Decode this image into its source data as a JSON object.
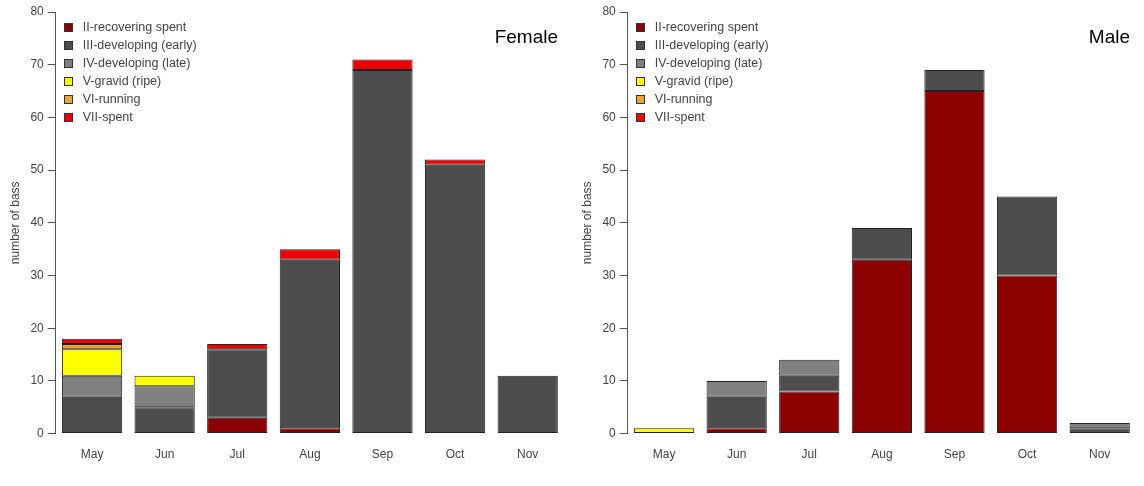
{
  "chart_data": [
    {
      "type": "bar",
      "title": "Female",
      "ylabel": "number of bass",
      "stacked": true,
      "legend": "top left",
      "grid": false,
      "categories": [
        "May",
        "Jun",
        "Jul",
        "Aug",
        "Sep",
        "Oct",
        "Nov"
      ],
      "ylim": [
        0,
        80
      ],
      "yticks": [
        0,
        10,
        20,
        30,
        40,
        50,
        60,
        70,
        80
      ],
      "series": [
        {
          "name": "II-recovering spent",
          "color": "#8b0000",
          "values": [
            0,
            0,
            3,
            1,
            0,
            0,
            0
          ]
        },
        {
          "name": "III-developing (early)",
          "color": "#4d4d4d",
          "values": [
            7,
            5,
            13,
            32,
            69,
            51,
            11
          ]
        },
        {
          "name": "IV-developing (late)",
          "color": "#808080",
          "values": [
            4,
            4,
            0,
            0,
            0,
            0,
            0
          ]
        },
        {
          "name": "V-gravid (ripe)",
          "color": "#ffff00",
          "values": [
            5,
            2,
            0,
            0,
            0,
            0,
            0
          ]
        },
        {
          "name": "VI-running",
          "color": "#e8a33a",
          "values": [
            1,
            0,
            0,
            0,
            0,
            0,
            0
          ]
        },
        {
          "name": "VII-spent",
          "color": "#ee0000",
          "values": [
            1,
            0,
            1,
            2,
            2,
            1,
            0
          ]
        }
      ]
    },
    {
      "type": "bar",
      "title": "Male",
      "ylabel": "number of bass",
      "stacked": true,
      "legend": "top left",
      "grid": false,
      "categories": [
        "May",
        "Jun",
        "Jul",
        "Aug",
        "Sep",
        "Oct",
        "Nov"
      ],
      "ylim": [
        0,
        80
      ],
      "yticks": [
        0,
        10,
        20,
        30,
        40,
        50,
        60,
        70,
        80
      ],
      "series": [
        {
          "name": "II-recovering spent",
          "color": "#8b0000",
          "values": [
            0,
            1,
            8,
            33,
            65,
            30,
            0
          ]
        },
        {
          "name": "III-developing (early)",
          "color": "#4d4d4d",
          "values": [
            0,
            6,
            3,
            6,
            4,
            15,
            1
          ]
        },
        {
          "name": "IV-developing (late)",
          "color": "#808080",
          "values": [
            0,
            3,
            3,
            0,
            0,
            0,
            1
          ]
        },
        {
          "name": "V-gravid (ripe)",
          "color": "#ffff00",
          "values": [
            1,
            0,
            0,
            0,
            0,
            0,
            0
          ]
        },
        {
          "name": "VI-running",
          "color": "#e8a33a",
          "values": [
            0,
            0,
            0,
            0,
            0,
            0,
            0
          ]
        },
        {
          "name": "VII-spent",
          "color": "#ee0000",
          "values": [
            0,
            0,
            0,
            0,
            0,
            0,
            0
          ]
        }
      ]
    }
  ]
}
